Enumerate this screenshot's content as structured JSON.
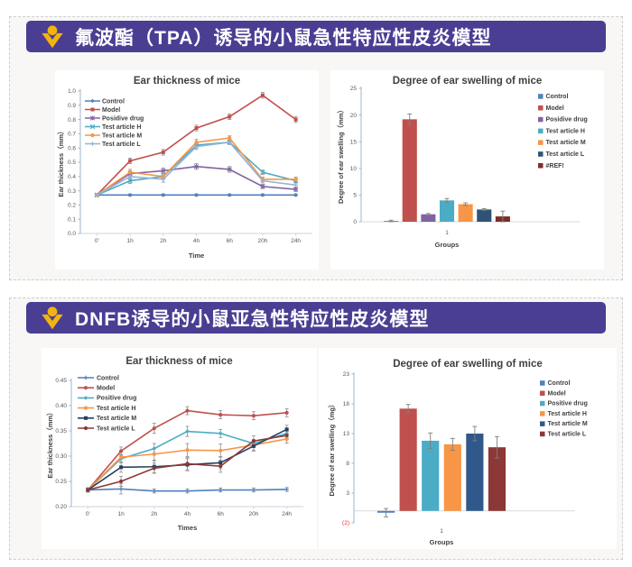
{
  "page": {
    "background": "#ffffff",
    "panel_background": "#f8f7f5",
    "panel_border": "#cfcfcf"
  },
  "sections": [
    {
      "header": {
        "title": "氟波酯（TPA）诱导的小鼠急性特应性皮炎模型",
        "background": "#4a3e93",
        "icon_color": "#f2b410"
      }
    },
    {
      "header": {
        "title": "DNFB诱导的小鼠亚急性特应性皮炎模型",
        "background": "#4a3e93",
        "icon_color": "#f2b410"
      }
    }
  ],
  "chart_data": [
    {
      "type": "line",
      "title": "Ear thickness of mice",
      "xlabel": "Time",
      "ylabel": "Ear thickness（mm）",
      "categories": [
        "0'",
        "1h",
        "2h",
        "4h",
        "6h",
        "20h",
        "24h"
      ],
      "ylim": [
        0.0,
        1.0
      ],
      "ytick_step": 0.1,
      "ytick_decimals": 1,
      "grid": false,
      "legend_position": "inside-top-left",
      "series": [
        {
          "name": "Control",
          "color": "#4F81BD",
          "marker": "diamond",
          "values": [
            0.27,
            0.27,
            0.27,
            0.27,
            0.27,
            0.27,
            0.27
          ],
          "errors": [
            0.008,
            0.008,
            0.008,
            0.008,
            0.008,
            0.008,
            0.008
          ]
        },
        {
          "name": "Model",
          "color": "#C0504D",
          "marker": "square",
          "values": [
            0.27,
            0.51,
            0.57,
            0.74,
            0.82,
            0.97,
            0.8
          ],
          "errors": [
            0.008,
            0.02,
            0.02,
            0.02,
            0.02,
            0.02,
            0.02
          ]
        },
        {
          "name": "Posidive drug",
          "color": "#8064A2",
          "marker": "asterisk",
          "values": [
            0.27,
            0.42,
            0.44,
            0.47,
            0.45,
            0.33,
            0.31
          ],
          "errors": [
            0.008,
            0.02,
            0.02,
            0.02,
            0.02,
            0.015,
            0.015
          ]
        },
        {
          "name": "Test article H",
          "color": "#4BACC6",
          "marker": "x",
          "values": [
            0.27,
            0.37,
            0.4,
            0.62,
            0.64,
            0.43,
            0.37
          ],
          "errors": [
            0.008,
            0.02,
            0.02,
            0.02,
            0.015,
            0.015,
            0.015
          ]
        },
        {
          "name": "Test article M",
          "color": "#F79646",
          "marker": "circle",
          "values": [
            0.27,
            0.43,
            0.4,
            0.64,
            0.67,
            0.38,
            0.38
          ],
          "errors": [
            0.008,
            0.02,
            0.02,
            0.02,
            0.015,
            0.015,
            0.015
          ]
        },
        {
          "name": "Test article L",
          "color": "#95B3D7",
          "marker": "plus",
          "values": [
            0.27,
            0.4,
            0.38,
            0.61,
            0.64,
            0.37,
            0.34
          ],
          "errors": [
            0.008,
            0.02,
            0.02,
            0.02,
            0.015,
            0.015,
            0.015
          ]
        }
      ]
    },
    {
      "type": "bar",
      "title": "Degree of ear swelling of mice",
      "xlabel": "Groups",
      "ylabel": "Degree of ear swelling（mm）",
      "categories": [
        "1"
      ],
      "ylim": [
        0,
        25
      ],
      "ytick_step": 5,
      "ytick_decimals": 0,
      "grid": false,
      "legend_position": "right",
      "series": [
        {
          "name": "Control",
          "color": "#4F81BD",
          "value": 0.15,
          "error": 0.15
        },
        {
          "name": "Model",
          "color": "#C0504D",
          "value": 19.2,
          "error": 1.0
        },
        {
          "name": "Posidive drug",
          "color": "#8064A2",
          "value": 1.4,
          "error": 0.15
        },
        {
          "name": "Test article H",
          "color": "#4BACC6",
          "value": 4.0,
          "error": 0.35
        },
        {
          "name": "Test article M",
          "color": "#F79646",
          "value": 3.3,
          "error": 0.25
        },
        {
          "name": "Test article L",
          "color": "#2F5376",
          "value": 2.3,
          "error": 0.15
        },
        {
          "name": "#REF!",
          "color": "#7F2D27",
          "value": 1.0,
          "error": 1.0
        }
      ]
    },
    {
      "type": "line",
      "title": "Ear thickness of mice",
      "xlabel": "Times",
      "ylabel": "Ear thickness（mm）",
      "categories": [
        "0'",
        "1h",
        "2h",
        "4h",
        "6h",
        "20h",
        "24h"
      ],
      "ylim": [
        0.2,
        0.45
      ],
      "ytick_step": 0.05,
      "ytick_decimals": 2,
      "grid": false,
      "legend_position": "inside-top-left",
      "series": [
        {
          "name": "Control",
          "color": "#4F81BD",
          "marker": "plus",
          "values": [
            0.233,
            0.235,
            0.231,
            0.231,
            0.233,
            0.233,
            0.234
          ],
          "errors": [
            0.004,
            0.01,
            0.004,
            0.004,
            0.004,
            0.004,
            0.004
          ]
        },
        {
          "name": "Model",
          "color": "#C0504D",
          "marker": "circle",
          "values": [
            0.233,
            0.31,
            0.355,
            0.39,
            0.382,
            0.38,
            0.386
          ],
          "errors": [
            0.004,
            0.008,
            0.01,
            0.008,
            0.008,
            0.008,
            0.008
          ]
        },
        {
          "name": "Positive drug",
          "color": "#4BACC6",
          "marker": "diamond",
          "values": [
            0.233,
            0.295,
            0.315,
            0.349,
            0.345,
            0.325,
            0.345
          ],
          "errors": [
            0.004,
            0.008,
            0.01,
            0.01,
            0.008,
            0.008,
            0.008
          ]
        },
        {
          "name": "Test article H",
          "color": "#F79646",
          "marker": "circle",
          "values": [
            0.233,
            0.298,
            0.304,
            0.312,
            0.311,
            0.322,
            0.334
          ],
          "errors": [
            0.004,
            0.01,
            0.012,
            0.013,
            0.013,
            0.01,
            0.008
          ]
        },
        {
          "name": "Test article M",
          "color": "#254061",
          "marker": "square",
          "values": [
            0.233,
            0.278,
            0.279,
            0.283,
            0.287,
            0.32,
            0.353
          ],
          "errors": [
            0.004,
            0.01,
            0.012,
            0.012,
            0.012,
            0.01,
            0.008
          ]
        },
        {
          "name": "Test article L",
          "color": "#8C3836",
          "marker": "circle",
          "values": [
            0.233,
            0.25,
            0.276,
            0.285,
            0.28,
            0.33,
            0.341
          ],
          "errors": [
            0.004,
            0.01,
            0.01,
            0.012,
            0.012,
            0.01,
            0.008
          ]
        }
      ]
    },
    {
      "type": "bar",
      "title": "Degree of ear swelling of mice",
      "xlabel": "Groups",
      "ylabel": "Degree of ear swelling（mg）",
      "categories": [
        "1"
      ],
      "ylim": [
        -2,
        23
      ],
      "ytick_step": 5,
      "ytick_decimals": 0,
      "negative_tick_format": "accounting-red",
      "grid": false,
      "legend_position": "right",
      "series": [
        {
          "name": "Control",
          "color": "#4F81BD",
          "value": -0.3,
          "error": 0.7
        },
        {
          "name": "Model",
          "color": "#C0504D",
          "value": 17.2,
          "error": 0.7
        },
        {
          "name": "Positive drug",
          "color": "#4BACC6",
          "value": 11.8,
          "error": 1.3
        },
        {
          "name": "Test article H",
          "color": "#F79646",
          "value": 11.2,
          "error": 1.0
        },
        {
          "name": "Test article M",
          "color": "#31588A",
          "value": 13.0,
          "error": 1.2
        },
        {
          "name": "Test article L",
          "color": "#8C3836",
          "value": 10.7,
          "error": 1.8
        }
      ]
    }
  ]
}
